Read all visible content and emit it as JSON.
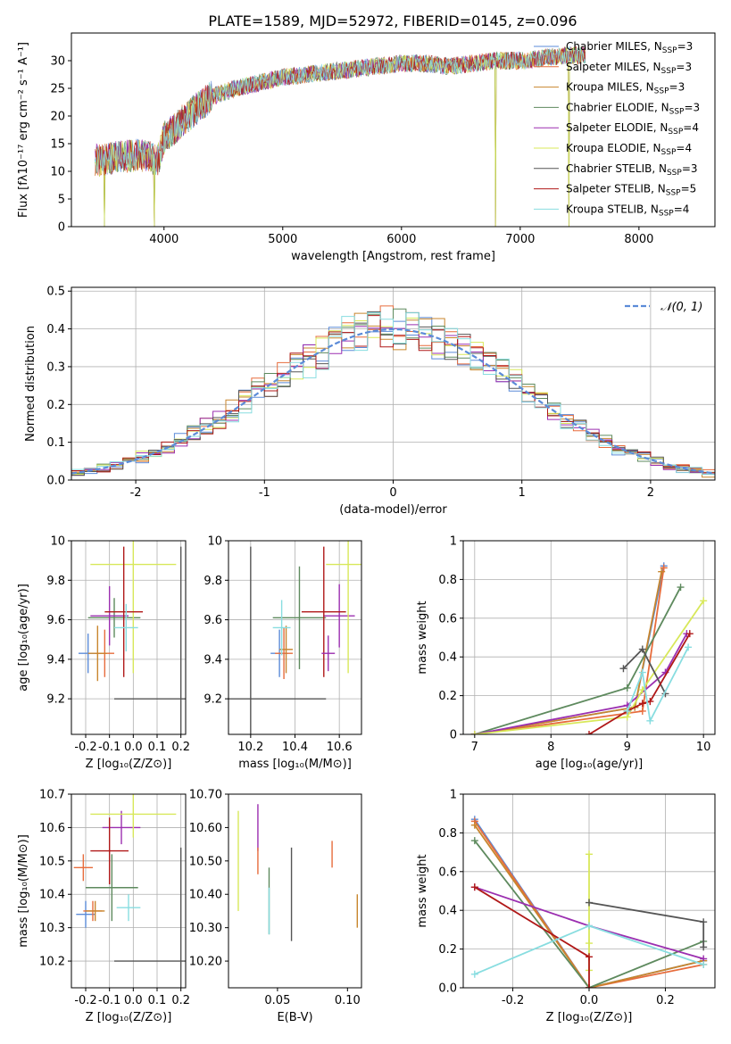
{
  "title": "PLATE=1589, MJD=52972, FIBERID=0145, z=0.096",
  "legend_spec": [
    {
      "name": "Chabrier MILES, N",
      "sub": "SSP",
      "val": "=3",
      "color": "#5b8bd8"
    },
    {
      "name": "Salpeter MILES, N",
      "sub": "SSP",
      "val": "=3",
      "color": "#e76c3c"
    },
    {
      "name": "Kroupa MILES, N",
      "sub": "SSP",
      "val": "=3",
      "color": "#c8862e"
    },
    {
      "name": "Chabrier ELODIE, N",
      "sub": "SSP",
      "val": "=3",
      "color": "#5e8a5e"
    },
    {
      "name": "Salpeter ELODIE, N",
      "sub": "SSP",
      "val": "=4",
      "color": "#9b2fb0"
    },
    {
      "name": "Kroupa ELODIE, N",
      "sub": "SSP",
      "val": "=4",
      "color": "#d8e85a"
    },
    {
      "name": "Chabrier STELIB, N",
      "sub": "SSP",
      "val": "=3",
      "color": "#555555"
    },
    {
      "name": "Salpeter STELIB, N",
      "sub": "SSP",
      "val": "=5",
      "color": "#b01818"
    },
    {
      "name": "Kroupa STELIB, N",
      "sub": "SSP",
      "val": "=4",
      "color": "#88dde0"
    }
  ],
  "chart_data": [
    {
      "id": "spectrum",
      "type": "line",
      "xlabel": "wavelength [Angstrom, rest frame]",
      "ylabel": "Flux [fλ10⁻¹⁷ erg cm⁻² s⁻¹ A⁻¹]",
      "xlim": [
        3220,
        8640
      ],
      "ylim": [
        0,
        35
      ],
      "xticks": [
        4000,
        5000,
        6000,
        7000,
        8000
      ],
      "yticks": [
        0,
        5,
        10,
        15,
        20,
        25,
        30
      ],
      "grid": false,
      "continuum": {
        "x": [
          3450,
          3600,
          3800,
          3950,
          4000,
          4200,
          4400,
          4600,
          4800,
          5000,
          5200,
          5400,
          5600,
          5800,
          6000,
          6200,
          6400,
          6600,
          6800,
          7000,
          7200,
          7400
        ],
        "y": [
          12,
          12.5,
          13,
          12,
          16,
          20,
          23.5,
          25,
          26,
          27,
          27.5,
          28,
          28.5,
          29,
          29.5,
          29.5,
          29,
          29.5,
          30,
          30,
          30.5,
          31
        ]
      },
      "dips": [
        {
          "x": 3500,
          "y": 0
        },
        {
          "x": 3920,
          "y": 0
        },
        {
          "x": 6790,
          "y": 0
        },
        {
          "x": 7410,
          "y": 0
        }
      ]
    },
    {
      "id": "residuals",
      "type": "step",
      "xlabel": "(data-model)/error",
      "ylabel": "Normed distribution",
      "xlim": [
        -2.5,
        2.5
      ],
      "ylim": [
        0,
        0.51
      ],
      "xticks": [
        -2,
        -1,
        0,
        1,
        2
      ],
      "yticks": [
        0,
        0.1,
        0.2,
        0.3,
        0.4,
        0.5
      ],
      "grid": true,
      "legend": "𝒩(0, 1)"
    },
    {
      "id": "age_vs_Z",
      "type": "errorbar",
      "xlabel": "Z [log₁₀(Z/Z⊙)]",
      "ylabel": "age  [log₁₀(age/yr)]",
      "xlim": [
        -0.26,
        0.22
      ],
      "ylim": [
        9.02,
        10.0
      ],
      "xticks": [
        -0.2,
        -0.1,
        0.0,
        0.1,
        0.2
      ],
      "yticks": [
        9.2,
        9.4,
        9.6,
        9.8,
        10.0
      ],
      "grid": true,
      "points": [
        {
          "x": -0.19,
          "xe": 0.04,
          "y": 9.43,
          "ye": 0.1,
          "s": 0
        },
        {
          "x": -0.12,
          "xe": 0.04,
          "y": 9.43,
          "ye": 0.12,
          "s": 1
        },
        {
          "x": -0.15,
          "xe": 0.04,
          "y": 9.43,
          "ye": 0.14,
          "s": 2
        },
        {
          "x": -0.08,
          "xe": 0.11,
          "y": 9.61,
          "ye": 0.1,
          "s": 3
        },
        {
          "x": -0.1,
          "xe": 0.08,
          "y": 9.62,
          "ye": 0.15,
          "s": 4
        },
        {
          "x": 0.0,
          "xe": 0.18,
          "y": 9.88,
          "ye": 0.55,
          "s": 5
        },
        {
          "x": 0.2,
          "xe": 0.28,
          "y": 9.2,
          "ye": 0.77,
          "s": 6
        },
        {
          "x": -0.04,
          "xe": 0.08,
          "y": 9.64,
          "ye": 0.33,
          "s": 7
        },
        {
          "x": -0.03,
          "xe": 0.05,
          "y": 9.56,
          "ye": 0.12,
          "s": 8
        }
      ]
    },
    {
      "id": "age_vs_mass",
      "type": "errorbar",
      "xlabel": "mass [log₁₀(M/M⊙)]",
      "ylabel": "",
      "xlim": [
        10.1,
        10.7
      ],
      "ylim": [
        9.02,
        10.0
      ],
      "xticks": [
        10.2,
        10.4,
        10.6
      ],
      "yticks": [
        9.2,
        9.4,
        9.6,
        9.8,
        10.0
      ],
      "grid": true,
      "points": [
        {
          "x": 10.33,
          "xe": 0.04,
          "y": 9.43,
          "ye": 0.12,
          "s": 0
        },
        {
          "x": 10.35,
          "xe": 0.04,
          "y": 9.43,
          "ye": 0.13,
          "s": 1
        },
        {
          "x": 10.36,
          "xe": 0.03,
          "y": 9.45,
          "ye": 0.12,
          "s": 2
        },
        {
          "x": 10.42,
          "xe": 0.12,
          "y": 9.61,
          "ye": 0.26,
          "s": 3
        },
        {
          "x": 10.6,
          "xe": 0.07,
          "y": 9.62,
          "ye": 0.16,
          "s": 4
        },
        {
          "x": 10.64,
          "xe": 0.1,
          "y": 9.88,
          "ye": 0.55,
          "s": 5
        },
        {
          "x": 10.2,
          "xe": 0.34,
          "y": 9.2,
          "ye": 0.77,
          "s": 6
        },
        {
          "x": 10.53,
          "xe": 0.1,
          "y": 9.64,
          "ye": 0.33,
          "s": 7
        },
        {
          "x": 10.34,
          "xe": 0.04,
          "y": 9.56,
          "ye": 0.14,
          "s": 8
        },
        {
          "x": 10.55,
          "xe": 0.03,
          "y": 9.43,
          "ye": 0.09,
          "s": 4
        }
      ]
    },
    {
      "id": "weight_vs_age",
      "type": "line",
      "xlabel": "age  [log₁₀(age/yr)]",
      "ylabel": "mass weight",
      "xlim": [
        6.85,
        10.15
      ],
      "ylim": [
        0,
        1.0
      ],
      "xticks": [
        7,
        8,
        9,
        10
      ],
      "yticks": [
        0,
        0.2,
        0.4,
        0.6,
        0.8,
        1.0
      ],
      "grid": true,
      "series": [
        {
          "s": 0,
          "x": [
            7.0,
            9.1,
            9.48
          ],
          "y": [
            0.0,
            0.14,
            0.87
          ]
        },
        {
          "s": 1,
          "x": [
            7.0,
            9.2,
            9.48
          ],
          "y": [
            0.0,
            0.12,
            0.86
          ]
        },
        {
          "s": 2,
          "x": [
            7.0,
            9.1,
            9.45
          ],
          "y": [
            0.0,
            0.14,
            0.84
          ]
        },
        {
          "s": 3,
          "x": [
            7.0,
            9.0,
            9.7
          ],
          "y": [
            0.0,
            0.24,
            0.76
          ]
        },
        {
          "s": 4,
          "x": [
            7.0,
            9.0,
            9.5,
            9.78
          ],
          "y": [
            0.0,
            0.15,
            0.32,
            0.52
          ]
        },
        {
          "s": 5,
          "x": [
            7.0,
            9.0,
            9.2,
            10.0
          ],
          "y": [
            0.0,
            0.09,
            0.23,
            0.69
          ]
        },
        {
          "s": 6,
          "x": [
            8.95,
            9.2,
            9.5
          ],
          "y": [
            0.34,
            0.44,
            0.21
          ]
        },
        {
          "s": 7,
          "x": [
            8.5,
            9.0,
            9.2,
            9.3,
            9.82
          ],
          "y": [
            0.0,
            0.12,
            0.16,
            0.17,
            0.52
          ]
        },
        {
          "s": 8,
          "x": [
            9.0,
            9.2,
            9.3,
            9.8
          ],
          "y": [
            0.12,
            0.32,
            0.07,
            0.45
          ]
        }
      ]
    },
    {
      "id": "mass_vs_Z",
      "type": "errorbar",
      "xlabel": "Z [log₁₀(Z/Z⊙)]",
      "ylabel": "mass [log₁₀(M/M⊙)]",
      "xlim": [
        -0.26,
        0.22
      ],
      "ylim": [
        10.12,
        10.7
      ],
      "xticks": [
        -0.2,
        -0.1,
        0.0,
        0.1,
        0.2
      ],
      "yticks": [
        10.2,
        10.3,
        10.4,
        10.5,
        10.6,
        10.7
      ],
      "grid": true,
      "points": [
        {
          "x": -0.2,
          "xe": 0.04,
          "y": 10.34,
          "ye": 0.04,
          "s": 0
        },
        {
          "x": -0.17,
          "xe": 0.04,
          "y": 10.35,
          "ye": 0.03,
          "s": 1
        },
        {
          "x": -0.16,
          "xe": 0.04,
          "y": 10.35,
          "ye": 0.03,
          "s": 2
        },
        {
          "x": -0.09,
          "xe": 0.11,
          "y": 10.42,
          "ye": 0.1,
          "s": 3
        },
        {
          "x": -0.05,
          "xe": 0.08,
          "y": 10.6,
          "ye": 0.05,
          "s": 4
        },
        {
          "x": 0.0,
          "xe": 0.18,
          "y": 10.64,
          "ye": 0.07,
          "s": 5
        },
        {
          "x": 0.2,
          "xe": 0.28,
          "y": 10.2,
          "ye": 0.34,
          "s": 6
        },
        {
          "x": -0.1,
          "xe": 0.08,
          "y": 10.53,
          "ye": 0.1,
          "s": 7
        },
        {
          "x": -0.02,
          "xe": 0.05,
          "y": 10.36,
          "ye": 0.04,
          "s": 8
        },
        {
          "x": -0.21,
          "xe": 0.04,
          "y": 10.48,
          "ye": 0.04,
          "s": 1
        }
      ]
    },
    {
      "id": "mass_vs_EBV",
      "type": "errorbar",
      "xlabel": "E(B-V)",
      "ylabel": "",
      "xlim": [
        0.015,
        0.11
      ],
      "ylim": [
        10.12,
        10.7
      ],
      "xticks": [
        0.05,
        0.1
      ],
      "yticks": [
        10.2,
        10.3,
        10.4,
        10.5,
        10.6,
        10.7
      ],
      "grid": false,
      "points": [
        {
          "x": 0.022,
          "xe": 0,
          "y": 10.5,
          "ye": 0.15,
          "s": 5
        },
        {
          "x": 0.036,
          "xe": 0,
          "y": 10.6,
          "ye": 0.07,
          "s": 4
        },
        {
          "x": 0.036,
          "xe": 0,
          "y": 10.5,
          "ye": 0.04,
          "s": 1
        },
        {
          "x": 0.044,
          "xe": 0,
          "y": 10.38,
          "ye": 0.1,
          "s": 3
        },
        {
          "x": 0.044,
          "xe": 0,
          "y": 10.35,
          "ye": 0.07,
          "s": 8
        },
        {
          "x": 0.06,
          "xe": 0,
          "y": 10.4,
          "ye": 0.14,
          "s": 6
        },
        {
          "x": 0.089,
          "xe": 0,
          "y": 10.52,
          "ye": 0.04,
          "s": 1
        },
        {
          "x": 0.107,
          "xe": 0,
          "y": 10.35,
          "ye": 0.05,
          "s": 2
        }
      ]
    },
    {
      "id": "weight_vs_Z",
      "type": "line",
      "xlabel": "Z [log₁₀(Z/Z⊙)]",
      "ylabel": "mass weight",
      "xlim": [
        -0.33,
        0.33
      ],
      "ylim": [
        0,
        1.0
      ],
      "xticks": [
        -0.2,
        0.0,
        0.2
      ],
      "yticks": [
        0,
        0.2,
        0.4,
        0.6,
        0.8,
        1.0
      ],
      "grid": true,
      "series": [
        {
          "s": 0,
          "x": [
            -0.3,
            0.0,
            0.3
          ],
          "y": [
            0.87,
            0.0,
            0.14
          ]
        },
        {
          "s": 1,
          "x": [
            -0.3,
            0.0,
            0.3
          ],
          "y": [
            0.86,
            0.0,
            0.12
          ]
        },
        {
          "s": 2,
          "x": [
            -0.3,
            0.0,
            0.3
          ],
          "y": [
            0.84,
            0.0,
            0.14
          ]
        },
        {
          "s": 3,
          "x": [
            -0.3,
            0.0,
            0.3
          ],
          "y": [
            0.76,
            0.0,
            0.24
          ]
        },
        {
          "s": 4,
          "x": [
            -0.3,
            0.0,
            0.3
          ],
          "y": [
            0.52,
            0.32,
            0.15
          ]
        },
        {
          "s": 5,
          "x": [
            0.0,
            0.0,
            0.0
          ],
          "y": [
            0.69,
            0.09,
            0.23
          ]
        },
        {
          "s": 6,
          "x": [
            0.0,
            0.3,
            0.3
          ],
          "y": [
            0.44,
            0.34,
            0.21
          ]
        },
        {
          "s": 7,
          "x": [
            -0.3,
            0.0,
            0.0
          ],
          "y": [
            0.52,
            0.16,
            0.0
          ]
        },
        {
          "s": 8,
          "x": [
            -0.3,
            0.0,
            0.3
          ],
          "y": [
            0.07,
            0.32,
            0.12
          ]
        }
      ]
    }
  ]
}
